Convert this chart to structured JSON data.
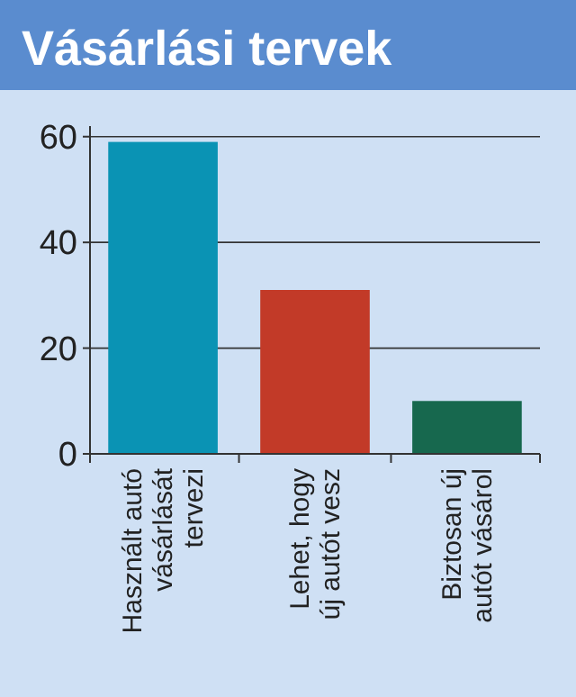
{
  "chart_data": {
    "type": "bar",
    "title": "Vásárlási tervek",
    "categories": [
      "Használt autó vásárlását tervezi",
      "Lehet, hogy új autót vesz",
      "Biztosan új autót vásárol"
    ],
    "values": [
      59,
      31,
      10
    ],
    "colors": [
      "#0a93b4",
      "#c23a28",
      "#17684e"
    ],
    "ylim": [
      0,
      62
    ],
    "yticks": [
      0,
      20,
      40,
      60
    ],
    "grid": "y"
  }
}
